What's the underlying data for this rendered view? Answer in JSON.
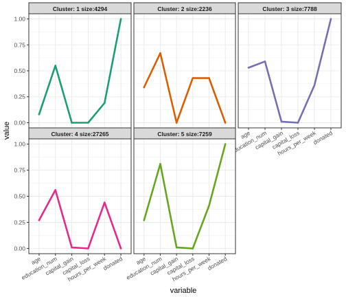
{
  "chart_data": {
    "type": "line",
    "xlabel": "variable",
    "ylabel": "value",
    "categories": [
      "age",
      "education_num",
      "capital_gain",
      "capital_loss",
      "hours_per_week",
      "donated"
    ],
    "yticks": [
      "0.00",
      "0.25",
      "0.50",
      "0.75",
      "1.00"
    ],
    "ylim": [
      -0.05,
      1.05
    ],
    "grid": true,
    "legend": "none",
    "panels": [
      {
        "title": "Cluster: 1 size:4294",
        "color": "#1b9e77",
        "values": [
          0.08,
          0.55,
          0.0,
          0.0,
          0.19,
          1.0
        ]
      },
      {
        "title": "Cluster: 2 size:2236",
        "color": "#d95f02",
        "values": [
          0.34,
          0.67,
          0.0,
          0.43,
          0.43,
          0.0
        ]
      },
      {
        "title": "Cluster: 3 size:7788",
        "color": "#7570b3",
        "values": [
          0.53,
          0.59,
          0.01,
          0.0,
          0.36,
          1.0
        ]
      },
      {
        "title": "Cluster: 4 size:27265",
        "color": "#e7298a",
        "values": [
          0.27,
          0.56,
          0.01,
          0.0,
          0.44,
          0.0
        ]
      },
      {
        "title": "Cluster: 5 size:7259",
        "color": "#66a61e",
        "values": [
          0.27,
          0.81,
          0.01,
          0.0,
          0.41,
          1.0
        ]
      }
    ]
  }
}
